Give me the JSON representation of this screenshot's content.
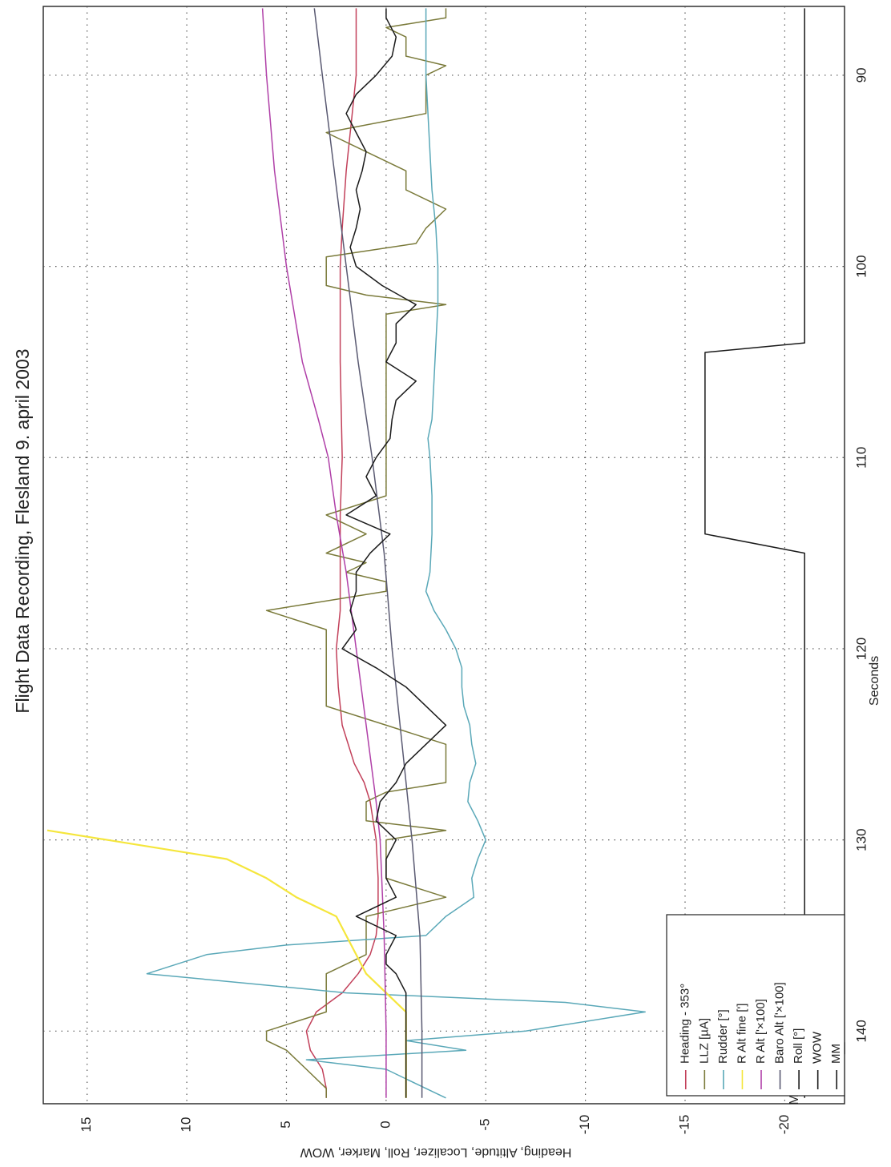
{
  "chart_data": {
    "type": "line",
    "title": "Flight Data Recording, Flesland 9. april 2003",
    "xlabel": "Seconds",
    "ylabel": "Heading, Altitude, Localizer, Roll, Marker, WOW",
    "xlim": [
      86.4,
      143.8
    ],
    "ylim": [
      -23,
      17.2
    ],
    "xticks": [
      90,
      100,
      110,
      120,
      130,
      140
    ],
    "yticks": [
      15,
      10,
      5,
      0,
      -5,
      -10,
      -15,
      -20
    ],
    "grid": true,
    "legend_position": "bottom-left",
    "series": [
      {
        "name": "Heading - 353°",
        "color": "#c2405a",
        "points": [
          [
            86.5,
            1.5
          ],
          [
            88,
            1.5
          ],
          [
            90,
            1.5
          ],
          [
            92,
            1.7
          ],
          [
            95,
            2
          ],
          [
            98,
            2.2
          ],
          [
            100,
            2.3
          ],
          [
            105,
            2.3
          ],
          [
            110,
            2.2
          ],
          [
            113,
            2.3
          ],
          [
            116,
            2.3
          ],
          [
            118,
            2.3
          ],
          [
            120,
            2.5
          ],
          [
            122,
            2.4
          ],
          [
            124,
            2.2
          ],
          [
            126,
            1.6
          ],
          [
            127,
            1.1
          ],
          [
            128,
            0.8
          ],
          [
            130,
            0.5
          ],
          [
            132,
            0.4
          ],
          [
            134,
            0.4
          ],
          [
            135,
            0.5
          ],
          [
            136,
            0.8
          ],
          [
            137,
            1.4
          ],
          [
            138,
            2.2
          ],
          [
            139,
            3.5
          ],
          [
            140,
            4
          ],
          [
            141,
            3.8
          ],
          [
            142,
            3.2
          ],
          [
            143,
            3
          ],
          [
            143.5,
            3
          ]
        ]
      },
      {
        "name": "LLZ [µA]",
        "color": "#7a7a3a",
        "points": [
          [
            86.5,
            -3
          ],
          [
            87,
            -3
          ],
          [
            87.5,
            0
          ],
          [
            88,
            -1
          ],
          [
            89,
            -1
          ],
          [
            89.5,
            -3
          ],
          [
            90,
            -2
          ],
          [
            91,
            -2
          ],
          [
            92,
            -2
          ],
          [
            93,
            3
          ],
          [
            94,
            1
          ],
          [
            95,
            -1
          ],
          [
            96,
            -1
          ],
          [
            97,
            -3
          ],
          [
            98,
            -2
          ],
          [
            98.8,
            -1.5
          ],
          [
            99.5,
            3
          ],
          [
            100,
            3
          ],
          [
            101,
            3
          ],
          [
            101.5,
            1
          ],
          [
            102,
            -3
          ],
          [
            102.5,
            0
          ],
          [
            103,
            0
          ],
          [
            106,
            0
          ],
          [
            110,
            0
          ],
          [
            112,
            0
          ],
          [
            113,
            3
          ],
          [
            114,
            1
          ],
          [
            115,
            3
          ],
          [
            115.5,
            1
          ],
          [
            116,
            2
          ],
          [
            116.5,
            0
          ],
          [
            117,
            0
          ],
          [
            118,
            6
          ],
          [
            119,
            3
          ],
          [
            121,
            3
          ],
          [
            123,
            3
          ],
          [
            124,
            0
          ],
          [
            125,
            -3
          ],
          [
            127,
            -3
          ],
          [
            127.5,
            0
          ],
          [
            128,
            1
          ],
          [
            129,
            1
          ],
          [
            129.5,
            -3
          ],
          [
            130,
            0
          ],
          [
            131,
            0
          ],
          [
            132,
            0
          ],
          [
            133,
            -3
          ],
          [
            134,
            1
          ],
          [
            135,
            1
          ],
          [
            136,
            1
          ],
          [
            137,
            3
          ],
          [
            138,
            3
          ],
          [
            139,
            3
          ],
          [
            140,
            6
          ],
          [
            140.5,
            6
          ],
          [
            141,
            5
          ],
          [
            142,
            4
          ],
          [
            143,
            3
          ],
          [
            143.5,
            3
          ]
        ]
      },
      {
        "name": "Rudder [°]",
        "color": "#5aa8b8",
        "points": [
          [
            86.5,
            -2
          ],
          [
            88,
            -2
          ],
          [
            90,
            -2
          ],
          [
            92,
            -2.1
          ],
          [
            94,
            -2.2
          ],
          [
            96,
            -2.3
          ],
          [
            98,
            -2.5
          ],
          [
            100,
            -2.6
          ],
          [
            102,
            -2.6
          ],
          [
            104,
            -2.5
          ],
          [
            106,
            -2.4
          ],
          [
            108,
            -2.3
          ],
          [
            109,
            -2.1
          ],
          [
            110,
            -2.2
          ],
          [
            112,
            -2.3
          ],
          [
            114,
            -2.3
          ],
          [
            116,
            -2.2
          ],
          [
            117,
            -2
          ],
          [
            118,
            -2.4
          ],
          [
            119,
            -3
          ],
          [
            120,
            -3.5
          ],
          [
            121,
            -3.8
          ],
          [
            122,
            -3.8
          ],
          [
            123,
            -3.9
          ],
          [
            124,
            -4.2
          ],
          [
            125,
            -4.3
          ],
          [
            126,
            -4.5
          ],
          [
            127,
            -4.2
          ],
          [
            128,
            -4.1
          ],
          [
            129,
            -4.6
          ],
          [
            130,
            -5
          ],
          [
            131,
            -4.6
          ],
          [
            132,
            -4.3
          ],
          [
            133,
            -4.4
          ],
          [
            134,
            -3
          ],
          [
            135,
            -2
          ],
          [
            135.5,
            5
          ],
          [
            136,
            9
          ],
          [
            137,
            12
          ],
          [
            137.5,
            7
          ],
          [
            138,
            2
          ],
          [
            138.5,
            -9
          ],
          [
            139,
            -13
          ],
          [
            140,
            -7
          ],
          [
            140.5,
            -1
          ],
          [
            141,
            -4
          ],
          [
            141.5,
            4
          ],
          [
            142,
            0
          ],
          [
            142.5,
            -1
          ],
          [
            143,
            -2
          ],
          [
            143.5,
            -3
          ]
        ]
      },
      {
        "name": "R Alt fine [']",
        "color": "#f5e63c",
        "points": [
          [
            129.5,
            17
          ],
          [
            130,
            14
          ],
          [
            130.5,
            11
          ],
          [
            131,
            8
          ],
          [
            132,
            6
          ],
          [
            133,
            4.5
          ],
          [
            134,
            2.5
          ],
          [
            135,
            2
          ],
          [
            136,
            1.5
          ],
          [
            137,
            1
          ],
          [
            138,
            0
          ],
          [
            139,
            -1
          ],
          [
            140,
            -1
          ],
          [
            141,
            -1
          ],
          [
            142,
            -1
          ],
          [
            143,
            -1
          ],
          [
            143.5,
            -1
          ]
        ]
      },
      {
        "name": "R Alt ['×100]",
        "color": "#b040a8",
        "points": [
          [
            86.5,
            6.2
          ],
          [
            90,
            6
          ],
          [
            95,
            5.6
          ],
          [
            100,
            5
          ],
          [
            105,
            4.2
          ],
          [
            108,
            3.4
          ],
          [
            110,
            2.9
          ],
          [
            113,
            2.5
          ],
          [
            116,
            2
          ],
          [
            120,
            1.5
          ],
          [
            124,
            1
          ],
          [
            128,
            0.5
          ],
          [
            130,
            0.3
          ],
          [
            135,
            0.1
          ],
          [
            140,
            0
          ],
          [
            143.5,
            0
          ]
        ]
      },
      {
        "name": "Baro Alt ['×100]",
        "color": "#5a5a72",
        "points": [
          [
            86.5,
            3.6
          ],
          [
            90,
            3.2
          ],
          [
            95,
            2.6
          ],
          [
            100,
            2
          ],
          [
            105,
            1.4
          ],
          [
            110,
            0.7
          ],
          [
            115,
            0.1
          ],
          [
            120,
            -0.3
          ],
          [
            125,
            -0.8
          ],
          [
            130,
            -1.3
          ],
          [
            135,
            -1.7
          ],
          [
            140,
            -1.8
          ],
          [
            143.5,
            -1.8
          ]
        ]
      },
      {
        "name": "Roll [°]",
        "color": "#1a1a1a",
        "points": [
          [
            86.5,
            0
          ],
          [
            87,
            0
          ],
          [
            88,
            -0.5
          ],
          [
            89,
            -0.3
          ],
          [
            90,
            0.5
          ],
          [
            91,
            1.5
          ],
          [
            92,
            2
          ],
          [
            93,
            1.5
          ],
          [
            94,
            1
          ],
          [
            95,
            1.2
          ],
          [
            96,
            1.5
          ],
          [
            97,
            1.3
          ],
          [
            98,
            1.5
          ],
          [
            99,
            1.8
          ],
          [
            100,
            1.5
          ],
          [
            101,
            0.2
          ],
          [
            102,
            -1.5
          ],
          [
            103,
            -0.5
          ],
          [
            104,
            -0.5
          ],
          [
            105,
            0
          ],
          [
            106,
            -1.5
          ],
          [
            107,
            -0.5
          ],
          [
            108,
            -0.3
          ],
          [
            109,
            -0.2
          ],
          [
            110,
            0.5
          ],
          [
            111,
            1
          ],
          [
            112,
            0.5
          ],
          [
            113,
            2
          ],
          [
            114,
            -0.2
          ],
          [
            115,
            0.8
          ],
          [
            116,
            1.5
          ],
          [
            117,
            1.5
          ],
          [
            118,
            1.8
          ],
          [
            119,
            1.5
          ],
          [
            120,
            2.2
          ],
          [
            121,
            0.5
          ],
          [
            122,
            -1
          ],
          [
            123,
            -2
          ],
          [
            124,
            -3
          ],
          [
            125,
            -2
          ],
          [
            126,
            -1
          ],
          [
            127,
            -0.5
          ],
          [
            128,
            0.3
          ],
          [
            129,
            0.5
          ],
          [
            130,
            -0.5
          ],
          [
            131,
            0
          ],
          [
            132,
            0
          ],
          [
            133,
            -0.5
          ],
          [
            134,
            1.5
          ],
          [
            135,
            -0.5
          ],
          [
            136,
            0
          ],
          [
            136.5,
            0
          ],
          [
            137,
            -0.5
          ],
          [
            138,
            -1
          ],
          [
            139,
            -1
          ],
          [
            140,
            -1
          ],
          [
            143.5,
            -1
          ]
        ]
      },
      {
        "name": "WOW",
        "color": "#1a1a1a",
        "points": [
          [
            86.5,
            -21
          ],
          [
            104,
            -21
          ],
          [
            104.5,
            -16
          ],
          [
            114,
            -16
          ],
          [
            115,
            -21
          ],
          [
            143.5,
            -21
          ]
        ]
      },
      {
        "name": "MM",
        "color": "#1a1a1a",
        "points": [
          [
            139.2,
            -23
          ],
          [
            140,
            -20
          ],
          [
            140.6,
            -23
          ],
          [
            141.2,
            -23
          ],
          [
            142,
            -20
          ],
          [
            142.6,
            -23
          ]
        ]
      }
    ],
    "annotations": [
      {
        "text": "MM",
        "x": 143.3,
        "y": -20.5
      }
    ]
  }
}
